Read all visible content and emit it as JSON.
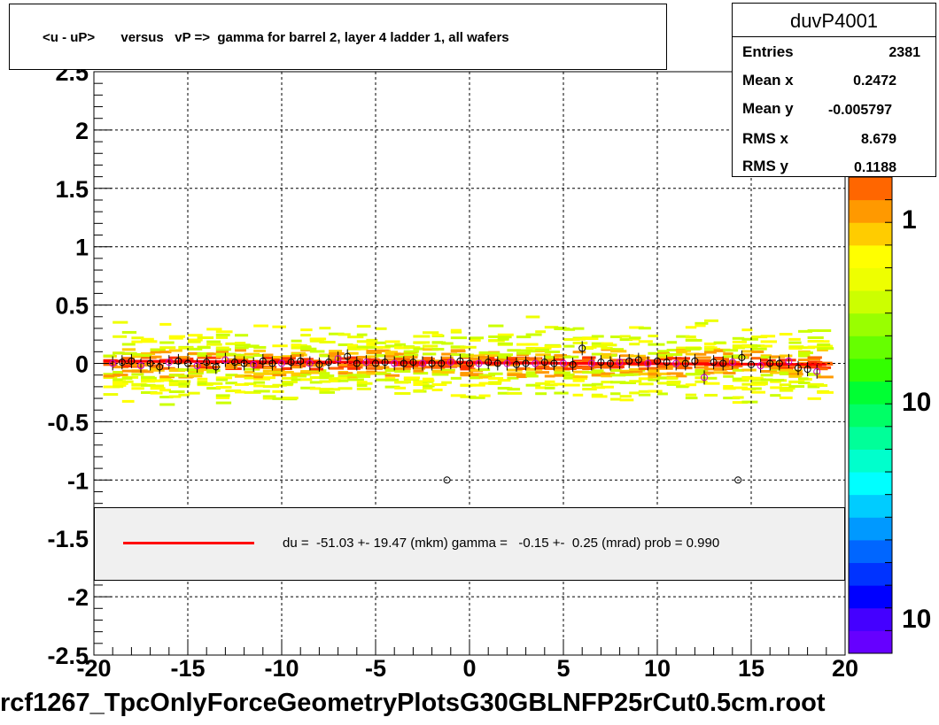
{
  "title": "<u - uP>       versus   vP =>  gamma for barrel 2, layer 4 ladder 1, all wafers",
  "stats": {
    "name": "duvP4001",
    "rows": [
      {
        "label": "Entries",
        "value": "2381"
      },
      {
        "label": "Mean x",
        "value": "0.2472"
      },
      {
        "label": "Mean y",
        "value": "-0.005797"
      },
      {
        "label": "RMS x",
        "value": "8.679"
      },
      {
        "label": "RMS y",
        "value": "0.1188"
      }
    ]
  },
  "legend": {
    "text": "du =  -51.03 +- 19.47 (mkm) gamma =   -0.15 +-  0.25 (mrad) prob = 0.990",
    "line_color": "#ff0000"
  },
  "file_label": "rcf1267_TpcOnlyForceGeometryPlotsG30GBLNFP25rCut0.5cm.root",
  "palette": {
    "labels": [
      "1",
      "10",
      "10"
    ],
    "colors": [
      "#6600ff",
      "#4400ff",
      "#0000ff",
      "#0033ff",
      "#0066ff",
      "#0099ff",
      "#00ccff",
      "#00ffff",
      "#00ffcc",
      "#00ff99",
      "#00ff66",
      "#00ff33",
      "#33ff00",
      "#66ff00",
      "#99ff00",
      "#ccff00",
      "#eeff00",
      "#ffff00",
      "#ffcc00",
      "#ff9900",
      "#ff6600"
    ]
  },
  "chart_data": {
    "type": "scatter",
    "xlim": [
      -20,
      20
    ],
    "ylim": [
      -2.5,
      2.5
    ],
    "xticks": [
      "-20",
      "-15",
      "-10",
      "-5",
      "0",
      "5",
      "10",
      "15",
      "20"
    ],
    "yticks": [
      "-2.5",
      "-2",
      "-1.5",
      "-1",
      "-0.5",
      "0",
      "0.5",
      "1",
      "1.5",
      "2",
      "2.5"
    ],
    "grid": true,
    "fit_line": {
      "color": "#ff0000",
      "x": [
        -19.5,
        19.0
      ],
      "y": [
        0.02,
        -0.01
      ]
    },
    "profile_points": {
      "x": [
        -19.0,
        -18.5,
        -18.0,
        -17.5,
        -17.0,
        -16.5,
        -16.0,
        -15.5,
        -15.0,
        -14.5,
        -14.0,
        -13.5,
        -13.0,
        -12.5,
        -12.0,
        -11.5,
        -11.0,
        -10.5,
        -10.0,
        -9.5,
        -9.0,
        -8.5,
        -8.0,
        -7.5,
        -7.0,
        -6.5,
        -6.0,
        -5.5,
        -5.0,
        -4.5,
        -4.0,
        -3.5,
        -3.0,
        -2.5,
        -2.0,
        -1.5,
        -1.0,
        -0.5,
        0.0,
        0.5,
        1.0,
        1.5,
        2.0,
        2.5,
        3.0,
        3.5,
        4.0,
        4.5,
        5.0,
        5.5,
        6.0,
        6.5,
        7.0,
        7.5,
        8.0,
        8.5,
        9.0,
        9.5,
        10.0,
        10.5,
        11.0,
        11.5,
        12.0,
        12.5,
        13.0,
        13.5,
        14.0,
        14.5,
        15.0,
        15.5,
        16.0,
        16.5,
        17.0,
        17.5,
        18.0,
        18.5
      ],
      "y": [
        0.0,
        0.01,
        0.02,
        -0.02,
        0.0,
        -0.03,
        0.01,
        0.02,
        0.0,
        -0.02,
        0.01,
        -0.03,
        0.03,
        0.01,
        0.0,
        -0.01,
        0.02,
        0.0,
        0.0,
        0.01,
        0.02,
        0.0,
        -0.01,
        0.01,
        0.04,
        0.06,
        0.0,
        0.01,
        0.0,
        0.01,
        0.0,
        0.0,
        0.01,
        0.0,
        0.0,
        0.0,
        0.01,
        0.02,
        0.0,
        0.0,
        0.01,
        0.0,
        0.0,
        -0.01,
        0.0,
        0.0,
        0.01,
        0.0,
        0.0,
        -0.01,
        0.13,
        0.0,
        0.01,
        0.0,
        0.01,
        0.02,
        0.03,
        0.0,
        0.02,
        0.01,
        0.0,
        0.0,
        0.02,
        -0.12,
        0.01,
        0.0,
        0.01,
        0.05,
        -0.01,
        -0.02,
        0.0,
        0.0,
        0.02,
        -0.04,
        -0.05,
        -0.07
      ]
    },
    "outliers": {
      "x": [
        -1.2,
        14.3
      ],
      "y": [
        -1.0,
        -1.0
      ]
    }
  }
}
